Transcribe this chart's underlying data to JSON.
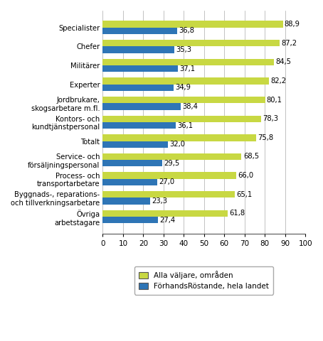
{
  "categories": [
    "Specialister",
    "Chefer",
    "Militärer",
    "Experter",
    "Jordbrukare,\nskogsarbetare m.fl.",
    "Kontors- och\nkundtjänstpersonal",
    "Totalt",
    "Service- och\nförsäljningspersonal",
    "Process- och\ntransportarbetare",
    "Byggnads-, reparations-\noch tillverkningsarbetare",
    "Övriga\narbetstagare"
  ],
  "alla_valjare": [
    88.9,
    87.2,
    84.5,
    82.2,
    80.1,
    78.3,
    75.8,
    68.5,
    66.0,
    65.1,
    61.8
  ],
  "forhandsrostande": [
    36.8,
    35.3,
    37.1,
    34.9,
    38.4,
    36.1,
    32.0,
    29.5,
    27.0,
    23.3,
    27.4
  ],
  "color_alla": "#c8d843",
  "color_forhand": "#2e75b6",
  "xlim": [
    0,
    100
  ],
  "xticks": [
    0,
    10,
    20,
    30,
    40,
    50,
    60,
    70,
    80,
    90,
    100
  ],
  "legend_alla": "Alla väljare, områden",
  "legend_forhand": "FörhandsRöstande, hela landet",
  "bar_height": 0.35,
  "label_fontsize": 7.2,
  "tick_fontsize": 7.5,
  "value_fontsize": 7.2,
  "background_color": "#ffffff"
}
